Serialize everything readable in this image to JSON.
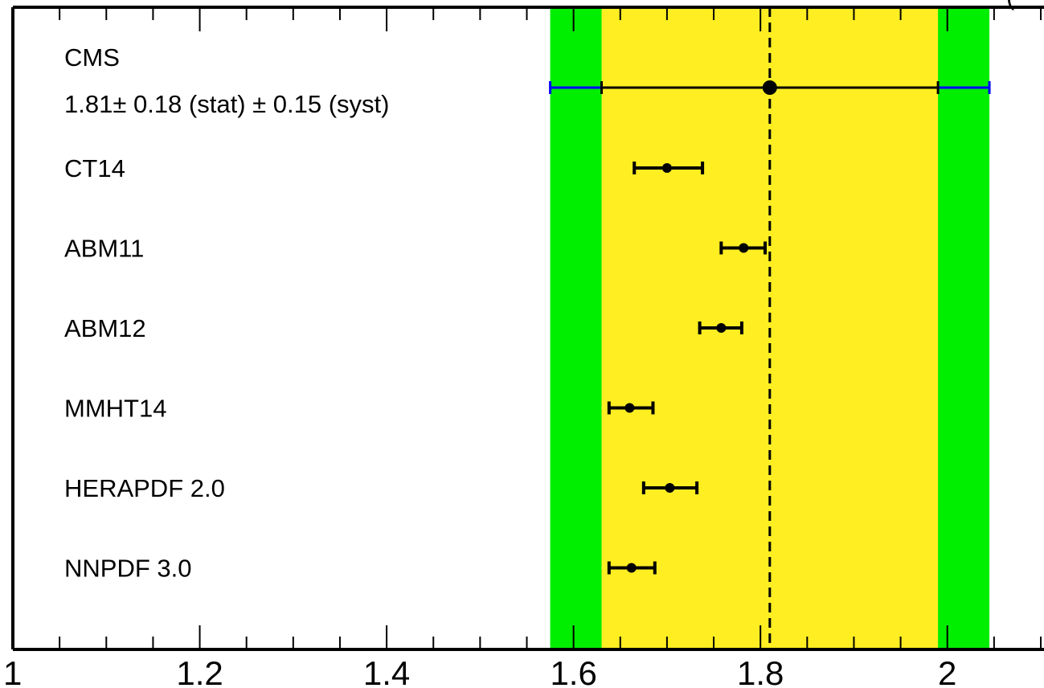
{
  "chart_data": {
    "type": "scatter",
    "title": "",
    "xlabel": "",
    "ylabel": "",
    "xlim": [
      1.0,
      2.1
    ],
    "grid": false,
    "x_ticks": [
      {
        "value": 1.0,
        "label": "1"
      },
      {
        "value": 1.2,
        "label": "1.2"
      },
      {
        "value": 1.4,
        "label": "1.4"
      },
      {
        "value": 1.6,
        "label": "1.6"
      },
      {
        "value": 1.8,
        "label": "1.8"
      },
      {
        "value": 2.0,
        "label": "2"
      }
    ],
    "minor_tick_step": 0.05,
    "measurement": {
      "name": "CMS",
      "result_text": "1.81± 0.18 (stat) ± 0.15 (syst)",
      "value": 1.81,
      "stat_band": [
        1.63,
        1.99
      ],
      "total_band": [
        1.575,
        2.045
      ],
      "color": "#0000ff"
    },
    "points": [
      {
        "label": "CT14",
        "value": 1.7,
        "low": 1.665,
        "high": 1.738
      },
      {
        "label": "ABM11",
        "value": 1.782,
        "low": 1.758,
        "high": 1.805
      },
      {
        "label": "ABM12",
        "value": 1.758,
        "low": 1.735,
        "high": 1.78
      },
      {
        "label": "MMHT14",
        "value": 1.66,
        "low": 1.638,
        "high": 1.685
      },
      {
        "label": "HERAPDF 2.0",
        "value": 1.703,
        "low": 1.675,
        "high": 1.732
      },
      {
        "label": "NNPDF 3.0",
        "value": 1.662,
        "low": 1.638,
        "high": 1.687
      }
    ],
    "clipped_text": "(",
    "colors": {
      "stat_band": "#ffee22",
      "total_band": "#00ee00",
      "points": "#000000",
      "measurement_text": "#0000ff"
    }
  }
}
